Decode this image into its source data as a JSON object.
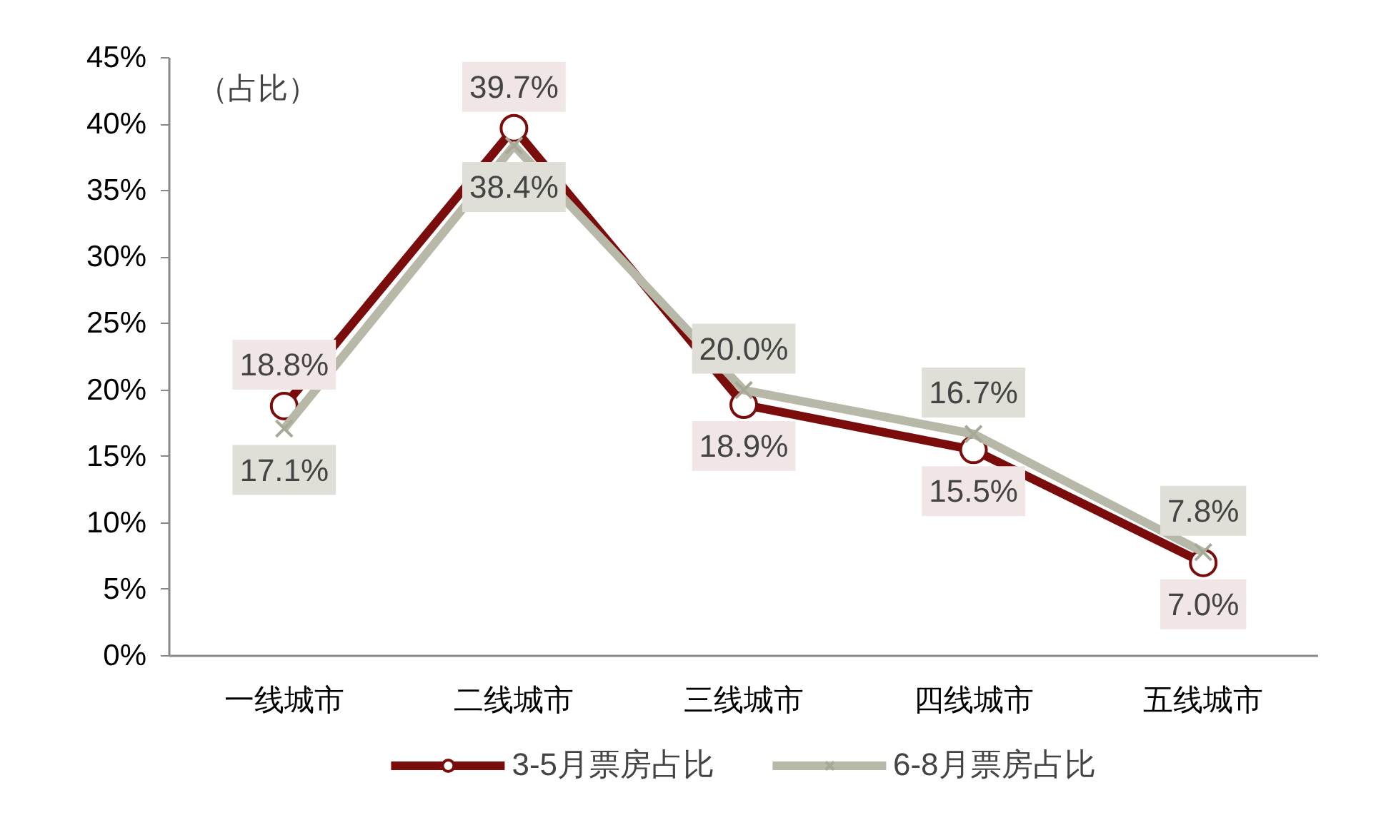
{
  "chart_data": {
    "type": "line",
    "ylabel": "（占比）",
    "categories": [
      "一线城市",
      "二线城市",
      "三线城市",
      "四线城市",
      "五线城市"
    ],
    "series": [
      {
        "name": "3-5月票房占比",
        "color": "#7b0c0c",
        "marker": "circle",
        "values": [
          18.8,
          39.7,
          18.9,
          15.5,
          7.0
        ],
        "value_labels": [
          "18.8%",
          "39.7%",
          "18.9%",
          "15.5%",
          "7.0%"
        ]
      },
      {
        "name": "6-8月票房占比",
        "color": "#b8b8a8",
        "marker": "cross",
        "values": [
          17.1,
          38.4,
          20.0,
          16.7,
          7.8
        ],
        "value_labels": [
          "17.1%",
          "38.4%",
          "20.0%",
          "16.7%",
          "7.8%"
        ]
      }
    ],
    "ylim": [
      0,
      45
    ],
    "yticks": [
      {
        "value": 0,
        "label": "0%"
      },
      {
        "value": 5,
        "label": "5%"
      },
      {
        "value": 10,
        "label": "10%"
      },
      {
        "value": 15,
        "label": "15%"
      },
      {
        "value": 20,
        "label": "20%"
      },
      {
        "value": 25,
        "label": "25%"
      },
      {
        "value": 30,
        "label": "30%"
      },
      {
        "value": 35,
        "label": "35%"
      },
      {
        "value": 40,
        "label": "40%"
      },
      {
        "value": 45,
        "label": "45%"
      }
    ],
    "grid": false,
    "legend": "bottom",
    "line_style": "solid"
  }
}
